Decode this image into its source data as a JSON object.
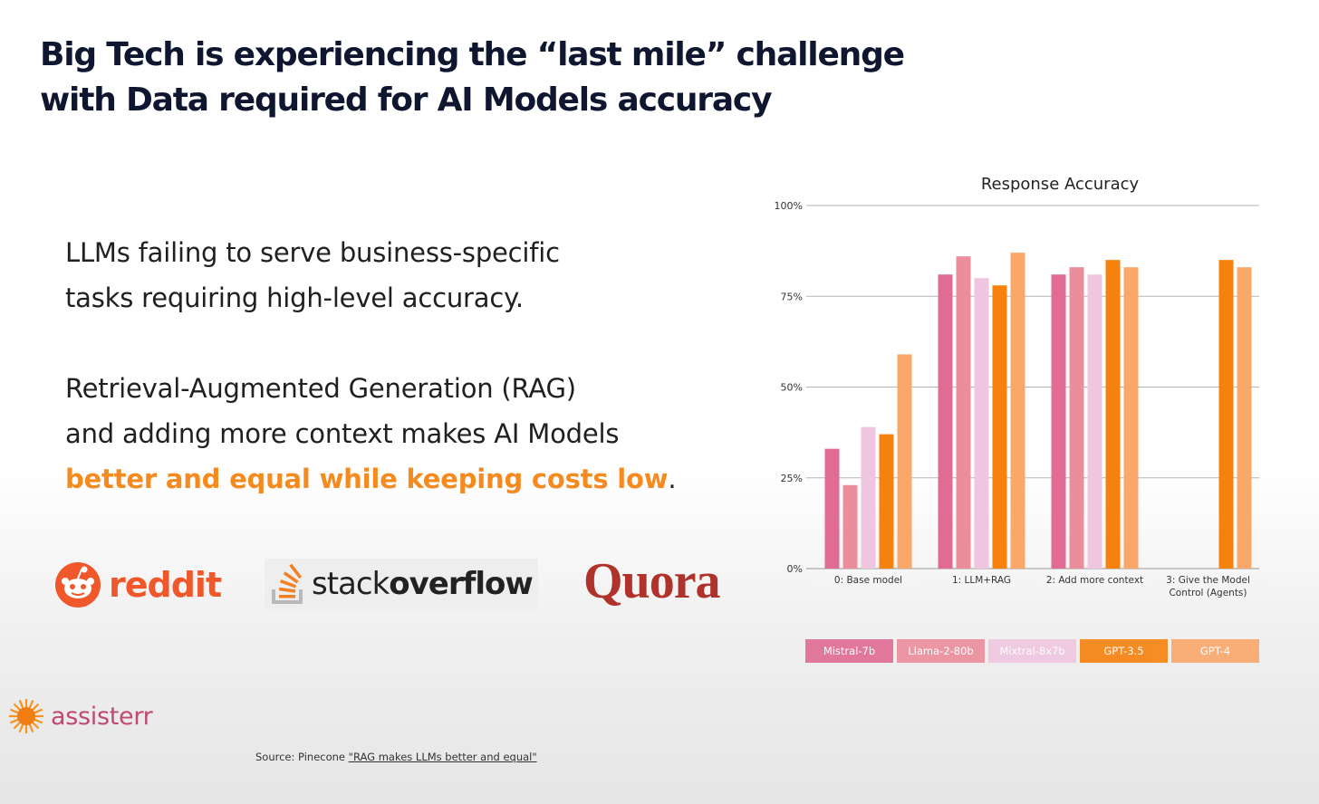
{
  "slide": {
    "title_lines": [
      "Big Tech is experiencing the “last mile” challenge",
      "with Data required for AI Models accuracy"
    ],
    "para1_lines": [
      "LLMs failing to serve business-specific",
      "tasks requiring high-level accuracy."
    ],
    "para2_lines": [
      "Retrieval-Augmented Generation (RAG)",
      "and adding more context makes AI Models"
    ],
    "para2_highlight": "better and equal while keeping costs low",
    "para2_end": ".",
    "source_prefix": "Source: Pinecone ",
    "source_link": "\"RAG makes LLMs better and equal\""
  },
  "logos": {
    "reddit": "reddit",
    "stackoverflow_a": "stack",
    "stackoverflow_b": "overflow",
    "quora": "Quora",
    "assisterr": "assisterr"
  },
  "colors": {
    "accent": "#f58b1f",
    "title": "#0f1630",
    "reddit": "#f0582c",
    "quora": "#b0332b",
    "assisterr": "#c04a6e"
  },
  "chart_data": {
    "type": "bar",
    "title": "Response Accuracy",
    "xlabel": "",
    "ylabel": "",
    "ylim": [
      0,
      100
    ],
    "yticks": [
      "0%",
      "25%",
      "50%",
      "75%",
      "100%"
    ],
    "ytick_values": [
      0,
      25,
      50,
      75,
      100
    ],
    "grid": true,
    "legend_position": "bottom",
    "categories": [
      [
        "0: Base model"
      ],
      [
        "1: LLM+RAG"
      ],
      [
        "2: Add more context"
      ],
      [
        "3: Give the Model",
        "Control (Agents)"
      ]
    ],
    "series": [
      {
        "name": "Mistral-7b",
        "color": "#e06b93",
        "values": [
          33,
          81,
          81,
          null
        ]
      },
      {
        "name": "Llama-2-80b",
        "color": "#ec8d9c",
        "values": [
          23,
          86,
          83,
          null
        ]
      },
      {
        "name": "Mixtral-8x7b",
        "color": "#efc6e0",
        "values": [
          39,
          80,
          81,
          null
        ]
      },
      {
        "name": "GPT-3.5",
        "color": "#f6810d",
        "values": [
          37,
          78,
          85,
          85
        ]
      },
      {
        "name": "GPT-4",
        "color": "#f9a86a",
        "values": [
          59,
          87,
          83,
          83
        ]
      }
    ]
  }
}
